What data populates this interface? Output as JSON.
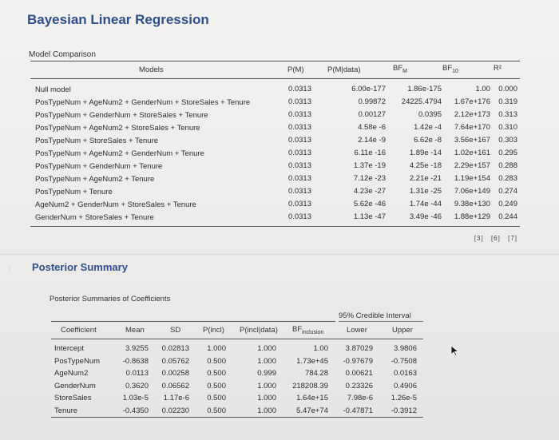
{
  "title": "Bayesian Linear Regression",
  "model_comparison": {
    "label": "Model Comparison",
    "headers": {
      "models": "Models",
      "pm": "P(M)",
      "pmdata": "P(M|data)",
      "bfm_main": "BF",
      "bfm_sub": "M",
      "bf10_main": "BF",
      "bf10_sub": "10",
      "r2": "R²"
    },
    "rows": [
      {
        "model": "Null model",
        "pm": "0.0313",
        "pmdata": "6.00e-177",
        "bfm": "1.86e-175",
        "bf10": "1.00",
        "r2": "0.000"
      },
      {
        "model": "PosTypeNum + AgeNum2 + GenderNum + StoreSales + Tenure",
        "pm": "0.0313",
        "pmdata": "0.99872",
        "bfm": "24225.4794",
        "bf10": "1.67e+176",
        "r2": "0.319"
      },
      {
        "model": "PosTypeNum + GenderNum + StoreSales + Tenure",
        "pm": "0.0313",
        "pmdata": "0.00127",
        "bfm": "0.0395",
        "bf10": "2.12e+173",
        "r2": "0.313"
      },
      {
        "model": "PosTypeNum + AgeNum2 + StoreSales + Tenure",
        "pm": "0.0313",
        "pmdata": "4.58e -6",
        "bfm": "1.42e -4",
        "bf10": "7.64e+170",
        "r2": "0.310"
      },
      {
        "model": "PosTypeNum + StoreSales + Tenure",
        "pm": "0.0313",
        "pmdata": "2.14e -9",
        "bfm": "6.62e -8",
        "bf10": "3.56e+167",
        "r2": "0.303"
      },
      {
        "model": "PosTypeNum + AgeNum2 + GenderNum + Tenure",
        "pm": "0.0313",
        "pmdata": "6.11e -16",
        "bfm": "1.89e -14",
        "bf10": "1.02e+161",
        "r2": "0.295"
      },
      {
        "model": "PosTypeNum + GenderNum + Tenure",
        "pm": "0.0313",
        "pmdata": "1.37e -19",
        "bfm": "4.25e -18",
        "bf10": "2.29e+157",
        "r2": "0.288"
      },
      {
        "model": "PosTypeNum + AgeNum2 + Tenure",
        "pm": "0.0313",
        "pmdata": "7.12e -23",
        "bfm": "2.21e -21",
        "bf10": "1.19e+154",
        "r2": "0.283"
      },
      {
        "model": "PosTypeNum + Tenure",
        "pm": "0.0313",
        "pmdata": "4.23e -27",
        "bfm": "1.31e -25",
        "bf10": "7.06e+149",
        "r2": "0.274"
      },
      {
        "model": "AgeNum2 + GenderNum + StoreSales + Tenure",
        "pm": "0.0313",
        "pmdata": "5.62e -46",
        "bfm": "1.74e -44",
        "bf10": "9.38e+130",
        "r2": "0.249"
      },
      {
        "model": "GenderNum + StoreSales + Tenure",
        "pm": "0.0313",
        "pmdata": "1.13e -47",
        "bfm": "3.49e -46",
        "bf10": "1.88e+129",
        "r2": "0.244"
      }
    ],
    "footnotes": [
      "[3]",
      "[6]",
      "[7]"
    ]
  },
  "posterior": {
    "title": "Posterior Summary",
    "subtitle": "Posterior Summaries of Coefficients",
    "credible_interval": "95% Credible Interval",
    "headers": {
      "coef": "Coefficient",
      "mean": "Mean",
      "sd": "SD",
      "pincl": "P(incl)",
      "pincldata": "P(incl|data)",
      "bf_main": "BF",
      "bf_sub": "inclusion",
      "lower": "Lower",
      "upper": "Upper"
    },
    "rows": [
      {
        "coef": "Intercept",
        "mean": "3.9255",
        "sd": "0.02813",
        "pincl": "1.000",
        "pincldata": "1.000",
        "bf": "1.00",
        "lower": "3.87029",
        "upper": "3.9806"
      },
      {
        "coef": "PosTypeNum",
        "mean": "-0.8638",
        "sd": "0.05762",
        "pincl": "0.500",
        "pincldata": "1.000",
        "bf": "1.73e+45",
        "lower": "-0.97679",
        "upper": "-0.7508"
      },
      {
        "coef": "AgeNum2",
        "mean": "0.0113",
        "sd": "0.00258",
        "pincl": "0.500",
        "pincldata": "0.999",
        "bf": "784.28",
        "lower": "0.00621",
        "upper": "0.0163"
      },
      {
        "coef": "GenderNum",
        "mean": "0.3620",
        "sd": "0.06562",
        "pincl": "0.500",
        "pincldata": "1.000",
        "bf": "218208.39",
        "lower": "0.23326",
        "upper": "0.4906"
      },
      {
        "coef": "StoreSales",
        "mean": "1.03e-5",
        "sd": "1.17e-6",
        "pincl": "0.500",
        "pincldata": "1.000",
        "bf": "1.64e+15",
        "lower": "7.98e-6",
        "upper": "1.26e-5"
      },
      {
        "coef": "Tenure",
        "mean": "-0.4350",
        "sd": "0.02230",
        "pincl": "0.500",
        "pincldata": "1.000",
        "bf": "5.47e+74",
        "lower": "-0.47871",
        "upper": "-0.3912"
      }
    ]
  },
  "colors": {
    "title": "#2f4f8c",
    "text": "#2b2b2b",
    "rule": "#555555",
    "background": "#efeeec"
  },
  "icons": {
    "cursor": "mouse-pointer-icon",
    "handle": "drag-handle-icon"
  }
}
